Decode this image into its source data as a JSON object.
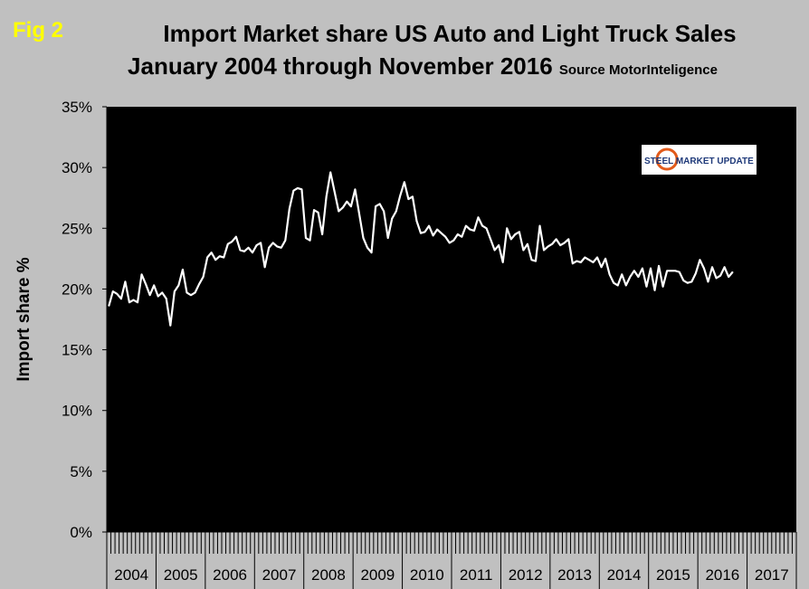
{
  "fig_label": "Fig 2",
  "title_line1": "Import Market share US Auto and Light Truck Sales",
  "title_line2": "January 2004 through November 2016",
  "source": "Source MotorInteligence",
  "logo_text": "STEEL MARKET UPDATE",
  "colors": {
    "background": "#c0c0c0",
    "plot": "#000000",
    "line": "#ffffff",
    "fig_label": "#ffff00"
  },
  "chart_data": {
    "type": "line",
    "xlabel": "",
    "ylabel": "Import share %",
    "ylim": [
      0,
      35
    ],
    "yticks": [
      "0%",
      "5%",
      "10%",
      "15%",
      "20%",
      "25%",
      "30%",
      "35%"
    ],
    "xlim": [
      "2004-01",
      "2017-12"
    ],
    "years": [
      "2004",
      "2005",
      "2006",
      "2007",
      "2008",
      "2009",
      "2010",
      "2011",
      "2012",
      "2013",
      "2014",
      "2015",
      "2016",
      "2017"
    ],
    "grid": false,
    "series": [
      {
        "values": [
          18.6,
          19.8,
          19.6,
          19.2,
          20.6,
          18.9,
          19.1,
          18.9,
          21.2,
          20.4,
          19.5,
          20.3,
          19.4,
          19.7,
          19.2,
          17.0,
          19.8,
          20.3,
          21.6,
          19.7,
          19.5,
          19.7,
          20.4,
          21.0,
          22.6,
          23.0,
          22.4,
          22.7,
          22.6,
          23.7,
          23.9,
          24.3,
          23.2,
          23.1,
          23.4,
          23.0,
          23.6,
          23.8,
          21.8,
          23.4,
          23.8,
          23.5,
          23.4,
          24.0,
          26.6,
          28.1,
          28.3,
          28.2,
          24.2,
          24.0,
          26.5,
          26.3,
          24.5,
          27.6,
          29.6,
          28.0,
          26.4,
          26.7,
          27.2,
          26.8,
          28.2,
          26.2,
          24.2,
          23.4,
          23.0,
          26.8,
          27.0,
          26.4,
          24.2,
          25.8,
          26.4,
          27.7,
          28.8,
          27.4,
          27.6,
          25.6,
          24.6,
          24.7,
          25.2,
          24.4,
          24.9,
          24.6,
          24.3,
          23.8,
          24.0,
          24.5,
          24.3,
          25.2,
          24.9,
          24.8,
          25.9,
          25.2,
          25.0,
          24.1,
          23.2,
          23.6,
          22.2,
          25.0,
          24.1,
          24.5,
          24.7,
          23.2,
          23.7,
          22.4,
          22.3,
          25.2,
          23.2,
          23.5,
          23.7,
          24.1,
          23.6,
          23.8,
          24.1,
          22.1,
          22.3,
          22.2,
          22.6,
          22.4,
          22.2,
          22.6,
          21.8,
          22.5,
          21.2,
          20.5,
          20.3,
          21.2,
          20.3,
          21.0,
          21.5,
          21.0,
          21.7,
          20.2,
          21.7,
          19.9,
          21.9,
          20.2,
          21.5,
          21.5,
          21.5,
          21.4,
          20.7,
          20.5,
          20.6,
          21.3,
          22.4,
          21.7,
          20.6,
          21.8,
          20.9,
          21.1,
          21.8,
          21.0,
          21.4
        ]
      }
    ]
  }
}
